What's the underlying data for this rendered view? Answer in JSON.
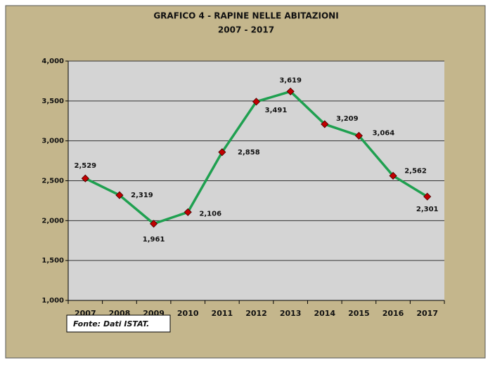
{
  "chart_data": {
    "type": "line",
    "title": "GRAFICO 4 - RAPINE NELLE ABITAZIONI",
    "subtitle": "2007 - 2017",
    "categories": [
      "2007",
      "2008",
      "2009",
      "2010",
      "2011",
      "2012",
      "2013",
      "2014",
      "2015",
      "2016",
      "2017"
    ],
    "values": [
      2529,
      2319,
      1961,
      2106,
      2858,
      3491,
      3619,
      3209,
      3064,
      2562,
      2301
    ],
    "value_labels": [
      "2,529",
      "2,319",
      "1,961",
      "2,106",
      "2,858",
      "3,491",
      "3,619",
      "3,209",
      "3,064",
      "2,562",
      "2,301"
    ],
    "color": "#1fa050",
    "marker_color": "#c00000",
    "ylim": [
      1000,
      4000
    ],
    "yticks": [
      {
        "value": 1000,
        "label": "1,000"
      },
      {
        "value": 1500,
        "label": "1,500"
      },
      {
        "value": 2000,
        "label": "2,000"
      },
      {
        "value": 2500,
        "label": "2,500"
      },
      {
        "value": 3000,
        "label": "3,000"
      },
      {
        "value": 3500,
        "label": "3,500"
      },
      {
        "value": 4000,
        "label": "4,000"
      }
    ],
    "grid": true,
    "source": "Fonte: Dati ISTAT."
  }
}
